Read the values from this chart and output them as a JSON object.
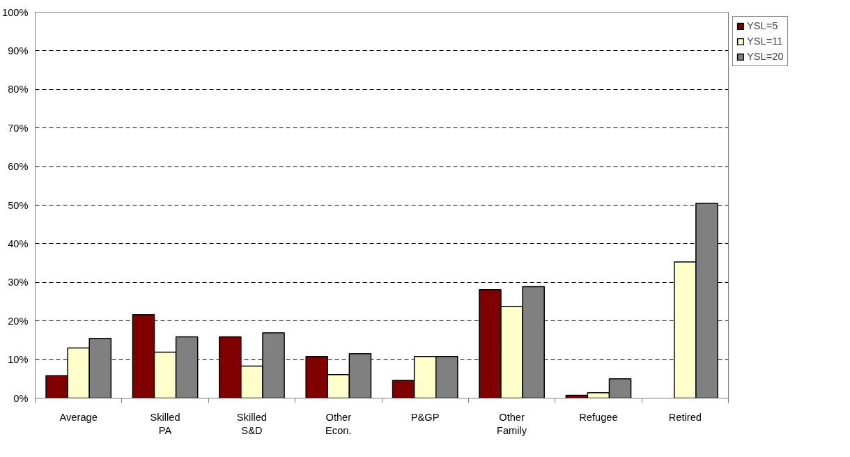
{
  "chart_data": {
    "type": "bar",
    "categories": [
      "Average",
      "Skilled\nPA",
      "Skilled\nS&D",
      "Other\nEcon.",
      "P&GP",
      "Other\nFamily",
      "Refugee",
      "Retired"
    ],
    "series": [
      {
        "name": "YSL=5",
        "color": "#800000",
        "values": [
          5.8,
          21.6,
          15.9,
          10.8,
          4.6,
          28.1,
          0.7,
          null
        ]
      },
      {
        "name": "YSL=11",
        "color": "#ffffcc",
        "values": [
          13.0,
          11.9,
          8.3,
          6.1,
          10.8,
          23.8,
          1.4,
          35.3
        ]
      },
      {
        "name": "YSL=20",
        "color": "#808080",
        "values": [
          15.5,
          15.9,
          16.9,
          11.5,
          10.8,
          28.9,
          5.0,
          50.5
        ]
      }
    ],
    "ylim": [
      0,
      100
    ],
    "yticks": [
      {
        "value": 0,
        "label": "0%"
      },
      {
        "value": 10,
        "label": "10%"
      },
      {
        "value": 20,
        "label": "20%"
      },
      {
        "value": 30,
        "label": "30%"
      },
      {
        "value": 40,
        "label": "40%"
      },
      {
        "value": 50,
        "label": "50%"
      },
      {
        "value": 60,
        "label": "60%"
      },
      {
        "value": 70,
        "label": "70%"
      },
      {
        "value": 80,
        "label": "80%"
      },
      {
        "value": 90,
        "label": "90%"
      },
      {
        "value": 100,
        "label": "100%"
      }
    ],
    "grid": "y",
    "legend": "top right"
  }
}
